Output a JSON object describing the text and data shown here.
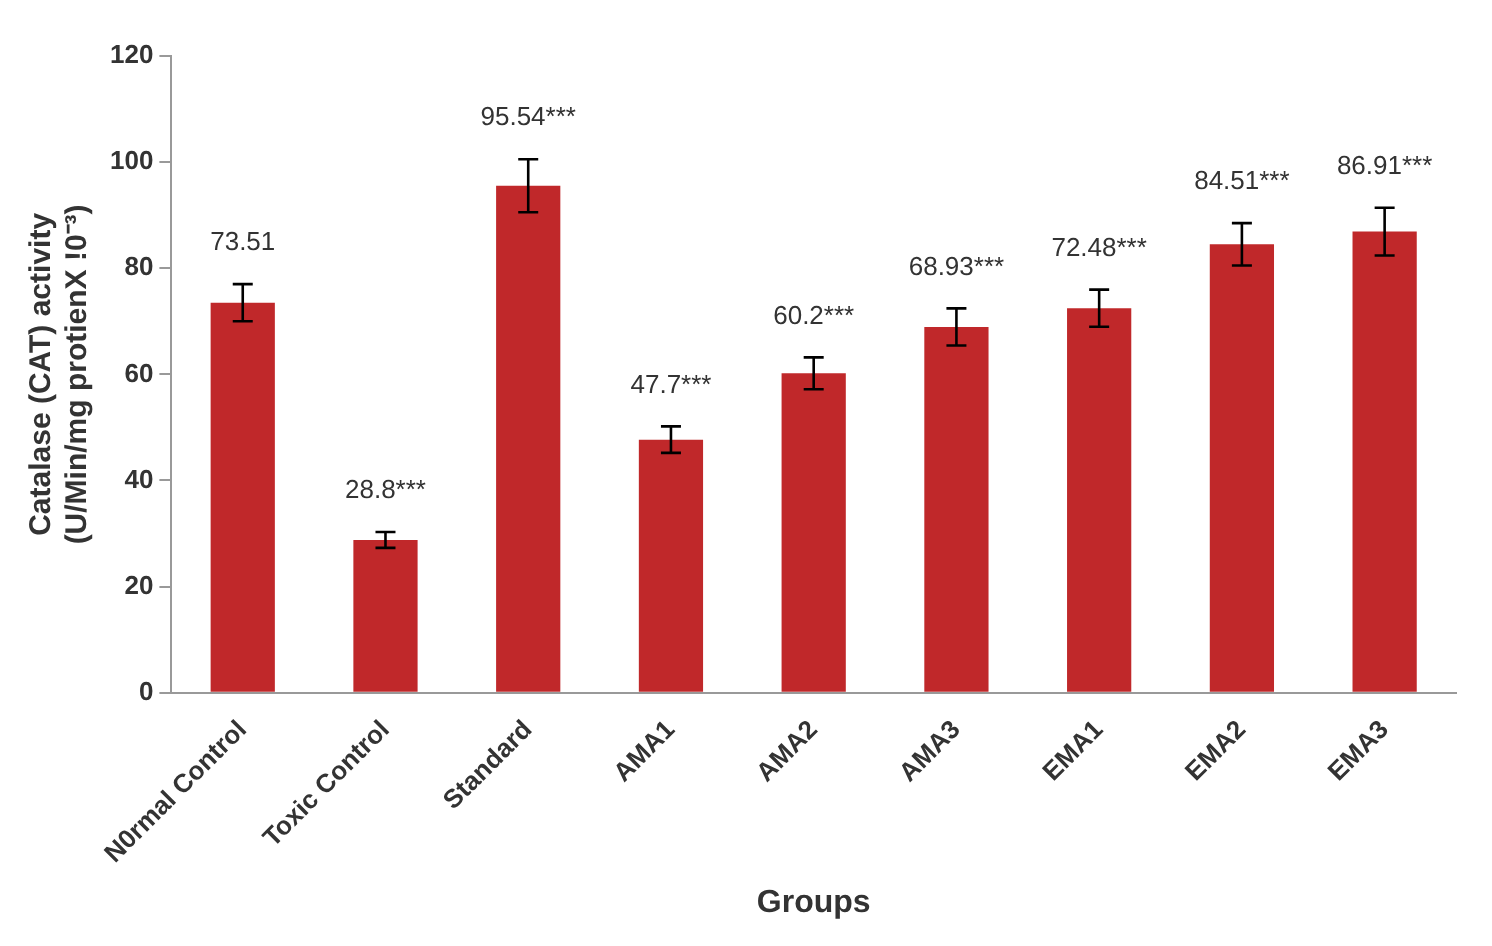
{
  "chart_data": {
    "type": "bar",
    "xlabel": "Groups",
    "ylabel": "Catalase (CAT) activity (U/Min/mg protienX !0⁻³)",
    "categories": [
      "N0rmal Control",
      "Toxic Control",
      "Standard",
      "AMA1",
      "AMA2",
      "AMA3",
      "EMA1",
      "EMA2",
      "EMA3"
    ],
    "values": [
      73.51,
      28.8,
      95.54,
      47.7,
      60.2,
      68.93,
      72.48,
      84.51,
      86.91
    ],
    "errors": [
      3.5,
      1.5,
      5,
      2.5,
      3,
      3.5,
      3.5,
      4,
      4.5
    ],
    "value_labels": [
      "73.51",
      "28.8***",
      "95.54***",
      "47.7***",
      "60.2***",
      "68.93***",
      "72.48***",
      "84.51***",
      "86.91***"
    ],
    "color": "#c0282a",
    "ylim": [
      0,
      120
    ],
    "yticks": [
      0,
      20,
      40,
      60,
      80,
      100,
      120
    ],
    "grid": false,
    "legend": false
  }
}
